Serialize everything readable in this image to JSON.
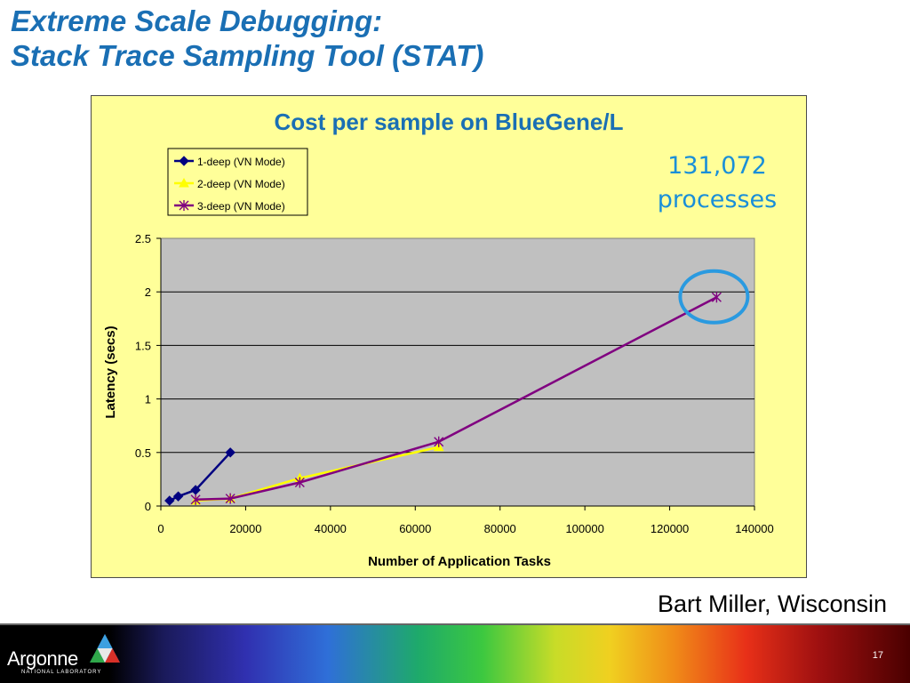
{
  "slide": {
    "title_line1": "Extreme Scale Debugging:",
    "title_line2": "Stack Trace Sampling Tool (STAT)",
    "author": "Bart Miller, Wisconsin",
    "page_number": "17",
    "logo_text": "Argonne",
    "logo_subtext": "NATIONAL LABORATORY"
  },
  "annotation": {
    "line1": "131,072",
    "line2": "processes"
  },
  "chart_data": {
    "type": "line",
    "title": "Cost per sample on BlueGene/L",
    "xlabel": "Number of Application Tasks",
    "ylabel": "Latency (secs)",
    "xlim": [
      0,
      140000
    ],
    "ylim": [
      0,
      2.5
    ],
    "xticks": [
      "0",
      "20000",
      "40000",
      "60000",
      "80000",
      "100000",
      "120000",
      "140000"
    ],
    "yticks": [
      "0",
      "0.5",
      "1",
      "1.5",
      "2",
      "2.5"
    ],
    "grid": "horizontal",
    "legend_position": "top-left",
    "plot_background": "#c0c0c0",
    "background": "#ffff99",
    "series": [
      {
        "name": "1-deep (VN Mode)",
        "color": "#000080",
        "marker": "diamond",
        "x": [
          2048,
          4096,
          8192,
          16384
        ],
        "y": [
          0.05,
          0.09,
          0.15,
          0.5
        ]
      },
      {
        "name": "2-deep (VN Mode)",
        "color": "#ffff00",
        "marker": "triangle",
        "x": [
          8192,
          16384,
          32768,
          65536
        ],
        "y": [
          0.05,
          0.07,
          0.26,
          0.55
        ]
      },
      {
        "name": "3-deep (VN Mode)",
        "color": "#800080",
        "marker": "asterisk",
        "x": [
          8192,
          16384,
          32768,
          65536,
          131072
        ],
        "y": [
          0.06,
          0.07,
          0.22,
          0.6,
          1.95
        ]
      }
    ],
    "highlight": {
      "shape": "circle",
      "color": "#2a9ae0",
      "x": 131072,
      "y": 1.95
    }
  }
}
